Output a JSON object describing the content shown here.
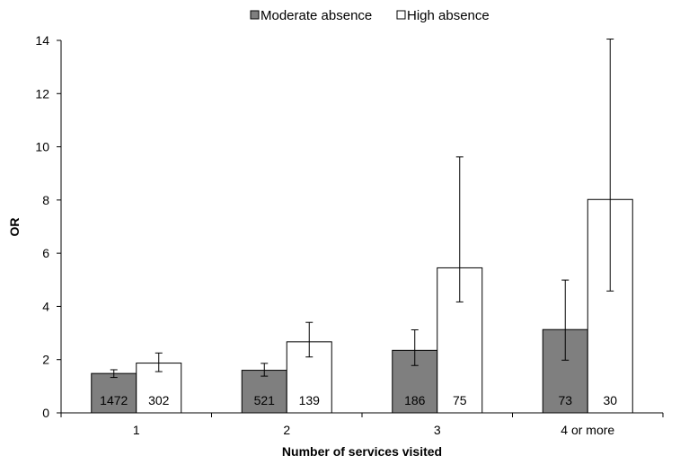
{
  "chart_data": {
    "type": "bar",
    "xlabel": "Number of services visited",
    "ylabel": "OR",
    "ylim": [
      0,
      14
    ],
    "yticks": [
      0,
      2,
      4,
      6,
      8,
      10,
      12,
      14
    ],
    "categories": [
      "1",
      "2",
      "3",
      "4 or more"
    ],
    "grid": false,
    "legend_position": "top-center",
    "series": [
      {
        "name": "Moderate absence",
        "color": "#7f7f7f",
        "values": [
          1.48,
          1.6,
          2.35,
          3.13
        ],
        "ci_lower": [
          1.33,
          1.38,
          1.78,
          1.98
        ],
        "ci_upper": [
          1.62,
          1.86,
          3.12,
          4.99
        ],
        "counts": [
          "1472",
          "521",
          "186",
          "73"
        ]
      },
      {
        "name": "High absence",
        "color": "#ffffff",
        "values": [
          1.87,
          2.67,
          5.45,
          8.02
        ],
        "ci_lower": [
          1.55,
          2.1,
          4.17,
          4.58
        ],
        "ci_upper": [
          2.25,
          3.4,
          9.62,
          14.05
        ],
        "counts": [
          "302",
          "139",
          "75",
          "30"
        ]
      }
    ]
  }
}
